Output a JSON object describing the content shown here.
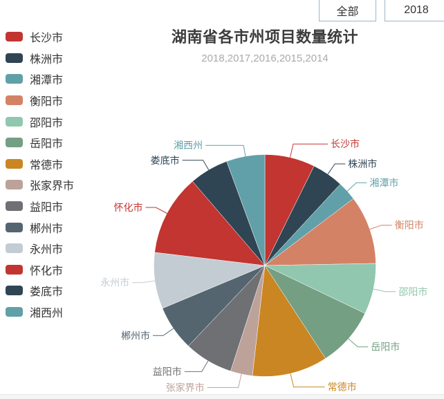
{
  "filter_bar": {
    "all_button": "全部",
    "year_button": "2018"
  },
  "chart": {
    "title": "湖南省各市州项目数量统计",
    "subtitle": "2018,2017,2016,2015,2014"
  },
  "chart_data": {
    "type": "pie",
    "title": "湖南省各市州项目数量统计",
    "subtitle": "2018,2017,2016,2015,2014",
    "legend_position": "left",
    "labels_on": true,
    "start_angle": "top",
    "direction": "clockwise",
    "note": "no numeric data labels shown; slice shares estimated from arc angles",
    "series": [
      {
        "name": "长沙市",
        "estimated_percent": 7.3,
        "color": "#c23531"
      },
      {
        "name": "株洲市",
        "estimated_percent": 4.6,
        "color": "#2f4554"
      },
      {
        "name": "湘潭市",
        "estimated_percent": 2.8,
        "color": "#61a0a8"
      },
      {
        "name": "衡阳市",
        "estimated_percent": 10.0,
        "color": "#d48265"
      },
      {
        "name": "邵阳市",
        "estimated_percent": 7.4,
        "color": "#91c7ae"
      },
      {
        "name": "岳阳市",
        "estimated_percent": 8.7,
        "color": "#749f83"
      },
      {
        "name": "常德市",
        "estimated_percent": 11.0,
        "color": "#ca8622"
      },
      {
        "name": "张家界市",
        "estimated_percent": 3.2,
        "color": "#bda29a"
      },
      {
        "name": "益阳市",
        "estimated_percent": 7.1,
        "color": "#6e7074"
      },
      {
        "name": "郴州市",
        "estimated_percent": 6.6,
        "color": "#546570"
      },
      {
        "name": "永州市",
        "estimated_percent": 8.2,
        "color": "#c4ccd3"
      },
      {
        "name": "怀化市",
        "estimated_percent": 11.8,
        "color": "#c23531"
      },
      {
        "name": "娄底市",
        "estimated_percent": 5.7,
        "color": "#2f4554"
      },
      {
        "name": "湘西州",
        "estimated_percent": 5.6,
        "color": "#61a0a8"
      }
    ]
  }
}
